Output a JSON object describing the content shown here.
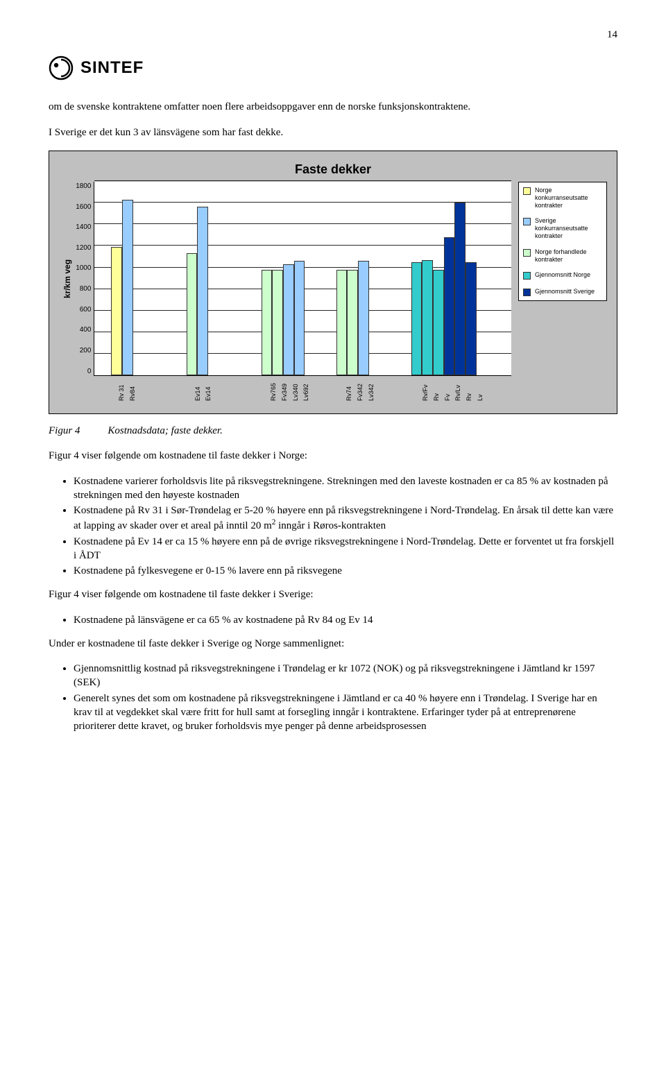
{
  "page_number": "14",
  "logo_text": "SINTEF",
  "intro_para1": "om de svenske kontraktene omfatter noen flere arbeidsoppgaver enn de norske funksjonskontraktene.",
  "intro_para2": "I Sverige er det kun 3 av länsvägene som har fast dekke.",
  "chart": {
    "type": "bar",
    "title": "Faste dekker",
    "ylabel": "kr/km veg",
    "ylim": [
      0,
      1800
    ],
    "ytick_step": 200,
    "yticks": [
      "1800",
      "1600",
      "1400",
      "1200",
      "1000",
      "800",
      "600",
      "400",
      "200",
      "0"
    ],
    "background_color": "#c0c0c0",
    "plot_background": "#ffffff",
    "grid_color": "#000000",
    "title_fontsize": 18,
    "label_fontsize": 12,
    "tick_fontsize": 10,
    "bar_width_pct": 2.6,
    "groups": [
      {
        "start_pct": 4,
        "bars": [
          {
            "label": "Rv 31",
            "value": 1190,
            "color": "#ffff99"
          },
          {
            "label": "Rv84",
            "value": 1630,
            "color": "#99ccff"
          }
        ]
      },
      {
        "start_pct": 22,
        "bars": [
          {
            "label": "Ev14",
            "value": 1130,
            "color": "#ccffcc"
          },
          {
            "label": "Ev14",
            "value": 1560,
            "color": "#99ccff"
          }
        ]
      },
      {
        "start_pct": 40,
        "bars": [
          {
            "label": "Rv765",
            "value": 980,
            "color": "#ccffcc"
          },
          {
            "label": "Fv349",
            "value": 980,
            "color": "#ccffcc"
          },
          {
            "label": "Lv340",
            "value": 1030,
            "color": "#99ccff"
          },
          {
            "label": "Lv692",
            "value": 1060,
            "color": "#99ccff"
          }
        ]
      },
      {
        "start_pct": 58,
        "bars": [
          {
            "label": "Rv74",
            "value": 980,
            "color": "#ccffcc"
          },
          {
            "label": "Fv342",
            "value": 980,
            "color": "#ccffcc"
          },
          {
            "label": "Lv342",
            "value": 1060,
            "color": "#99ccff"
          }
        ]
      },
      {
        "start_pct": 76,
        "bars": [
          {
            "label": "Rv/Fv",
            "value": 1050,
            "color": "#33cccc"
          },
          {
            "label": "Rv",
            "value": 1070,
            "color": "#33cccc"
          },
          {
            "label": "Fv",
            "value": 980,
            "color": "#33cccc"
          },
          {
            "label": "Rv/Lv",
            "value": 1280,
            "color": "#003399"
          },
          {
            "label": "Rv",
            "value": 1600,
            "color": "#003399"
          },
          {
            "label": "Lv",
            "value": 1050,
            "color": "#003399"
          }
        ]
      }
    ],
    "legend": [
      {
        "color": "#ffff99",
        "label": "Norge konkurranseutsatte kontrakter"
      },
      {
        "color": "#99ccff",
        "label": "Sverige konkurranseutsatte kontrakter"
      },
      {
        "color": "#ccffcc",
        "label": "Norge forhandlede kontrakter"
      },
      {
        "color": "#33cccc",
        "label": "Gjennomsnitt Norge"
      },
      {
        "color": "#003399",
        "label": "Gjennomsnitt Sverige"
      }
    ]
  },
  "figure_label": "Figur 4",
  "figure_caption": "Kostnadsdata; faste dekker.",
  "body_para1": "Figur 4 viser følgende om kostnadene til faste dekker i Norge:",
  "bullets_norge": [
    "Kostnadene varierer forholdsvis lite på riksvegstrekningene. Strekningen med den laveste kostnaden er ca 85 % av kostnaden på strekningen med den høyeste kostnaden",
    "Kostnadene på Rv 31 i Sør-Trøndelag er 5-20 % høyere enn på riksvegstrekningene i Nord-Trøndelag. En årsak til dette kan være at lapping av skader over et areal på inntil 20 m² inngår i Røros-kontrakten",
    "Kostnadene på Ev 14 er ca 15 % høyere enn på de øvrige riksvegstrekningene i Nord-Trøndelag. Dette er forventet ut fra forskjell i ÅDT",
    "Kostnadene på fylkesvegene er 0-15 % lavere enn på riksvegene"
  ],
  "body_para2": "Figur 4 viser følgende om kostnadene til faste dekker i Sverige:",
  "bullets_sverige": [
    "Kostnadene på länsvägene er ca 65 % av kostnadene på Rv 84 og Ev 14"
  ],
  "body_para3": "Under er kostnadene til faste dekker i Sverige og Norge sammenlignet:",
  "bullets_compare": [
    "Gjennomsnittlig kostnad på riksvegstrekningene i Trøndelag er kr 1072 (NOK) og på riksvegstrekningene i Jämtland kr 1597 (SEK)",
    "Generelt synes det som om kostnadene på riksvegstrekningene i Jämtland er ca 40 % høyere enn i Trøndelag. I Sverige har en krav til at vegdekket skal være fritt for hull samt at forsegling inngår i kontraktene. Erfaringer tyder på at entreprenørene prioriterer dette kravet, og bruker forholdsvis mye penger på denne arbeidsprosessen"
  ]
}
